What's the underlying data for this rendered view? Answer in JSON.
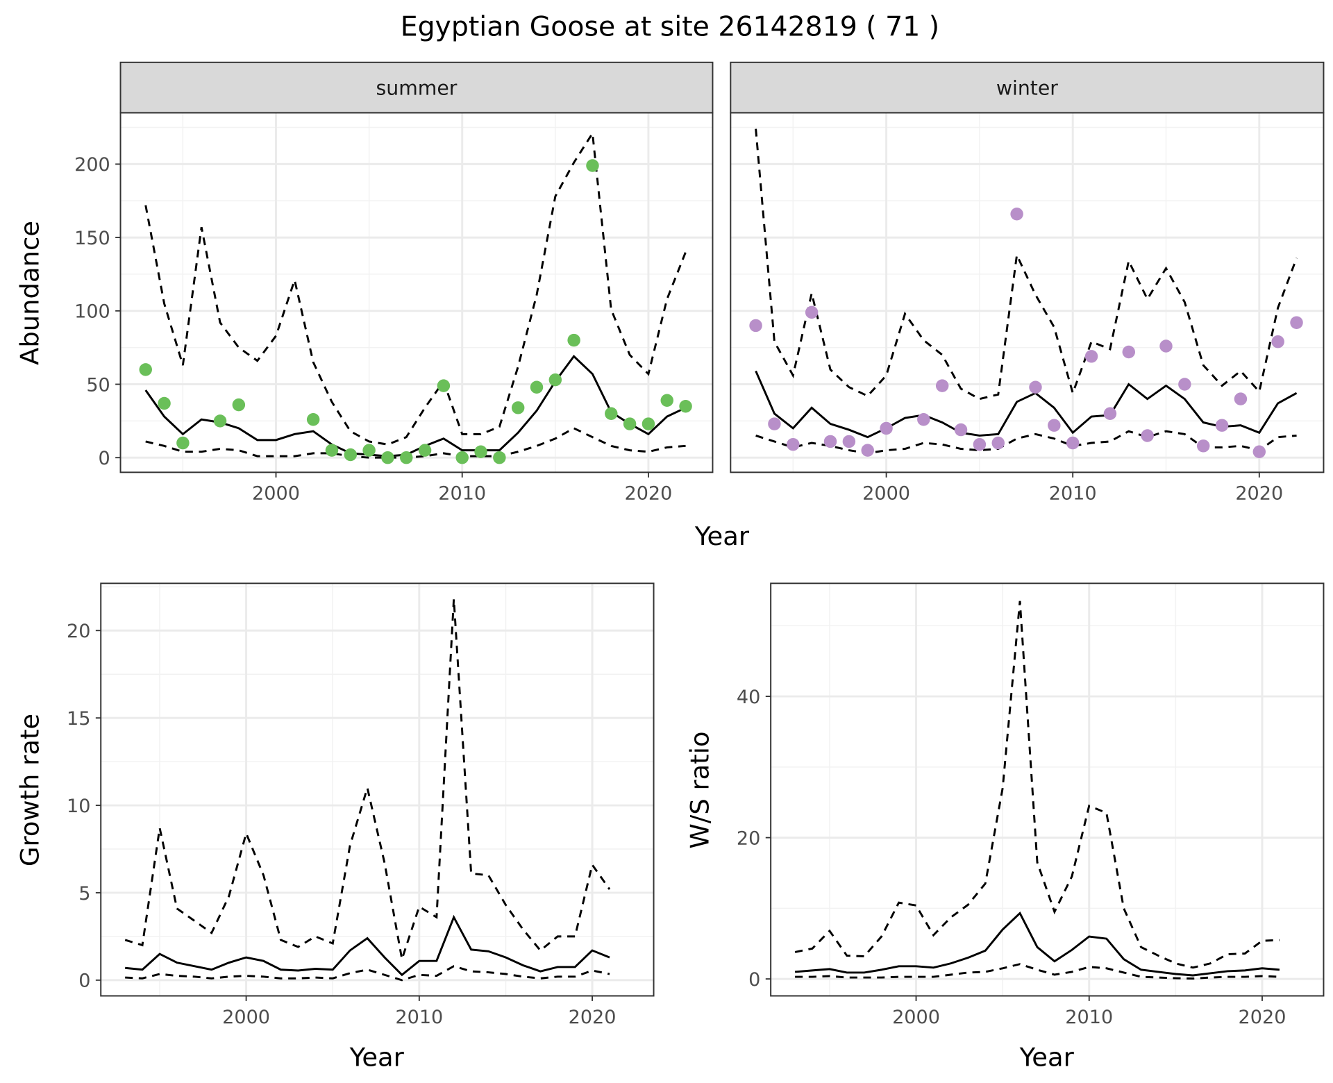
{
  "title": "Egyptian Goose at site 26142819 ( 71 )",
  "chart_data": [
    {
      "type": "line+scatter",
      "xlabel": "Year",
      "ylabel": "Abundance",
      "xlim": [
        1991.65,
        2023.45
      ],
      "ylim": [
        -10,
        235
      ],
      "xticks": [
        2000,
        2010,
        2020
      ],
      "xtick_labels": [
        "2000",
        "2010",
        "2020"
      ],
      "yticks": [
        0,
        50,
        100,
        150,
        200
      ],
      "ytick_labels": [
        "0",
        "50",
        "100",
        "150",
        "200"
      ],
      "grid": true,
      "x": [
        1993,
        1994,
        1995,
        1996,
        1997,
        1998,
        1999,
        2000,
        2001,
        2002,
        2003,
        2004,
        2005,
        2006,
        2007,
        2008,
        2009,
        2010,
        2011,
        2012,
        2013,
        2014,
        2015,
        2016,
        2017,
        2018,
        2019,
        2020,
        2021,
        2022
      ],
      "facets": [
        {
          "label": "summer",
          "point_color": "#6abf59",
          "observed": [
            60,
            37,
            10,
            null,
            25,
            36,
            null,
            null,
            null,
            26,
            5,
            2,
            5,
            0,
            0,
            5,
            49,
            0,
            4,
            0,
            34,
            48,
            53,
            80,
            199,
            30,
            23,
            23,
            39,
            35
          ],
          "mean": [
            46,
            28,
            16,
            26,
            24,
            20,
            12,
            12,
            16,
            18,
            9,
            3,
            2,
            1,
            2,
            8,
            13,
            5,
            5,
            5,
            17,
            32,
            52,
            69,
            57,
            31,
            23,
            16,
            28,
            34
          ],
          "upper": [
            172,
            105,
            63,
            157,
            92,
            75,
            66,
            83,
            121,
            65,
            38,
            18,
            11,
            9,
            14,
            34,
            52,
            16,
            16,
            21,
            62,
            111,
            178,
            201,
            221,
            101,
            70,
            57,
            108,
            140
          ],
          "lower": [
            11,
            8,
            4,
            4,
            6,
            5,
            1,
            1,
            1,
            3,
            3,
            1,
            0,
            0,
            0,
            1,
            3,
            1,
            1,
            1,
            4,
            8,
            13,
            20,
            14,
            8,
            5,
            4,
            7,
            8
          ]
        },
        {
          "label": "winter",
          "point_color": "#b88fc9",
          "observed": [
            90,
            23,
            9,
            99,
            11,
            11,
            5,
            20,
            null,
            26,
            49,
            19,
            9,
            10,
            166,
            48,
            22,
            10,
            69,
            30,
            72,
            15,
            76,
            50,
            8,
            22,
            40,
            4,
            79,
            92
          ],
          "mean": [
            59,
            30,
            20,
            34,
            23,
            19,
            14,
            20,
            27,
            29,
            24,
            17,
            15,
            16,
            38,
            44,
            34,
            17,
            28,
            29,
            50,
            40,
            49,
            40,
            24,
            21,
            22,
            17,
            37,
            44
          ],
          "upper": [
            224,
            79,
            56,
            112,
            60,
            48,
            42,
            56,
            98,
            80,
            70,
            47,
            40,
            43,
            138,
            111,
            89,
            44,
            79,
            74,
            134,
            108,
            129,
            106,
            63,
            49,
            59,
            45,
            102,
            136
          ],
          "lower": [
            15,
            11,
            7,
            10,
            8,
            5,
            3,
            5,
            6,
            10,
            9,
            6,
            5,
            6,
            13,
            16,
            13,
            8,
            10,
            11,
            18,
            14,
            18,
            16,
            7,
            7,
            8,
            5,
            14,
            15
          ]
        }
      ]
    },
    {
      "type": "line",
      "xlabel": "Year",
      "ylabel": "Growth rate",
      "xlim": [
        1991.6,
        2023.55
      ],
      "ylim": [
        -0.9,
        22.7
      ],
      "xticks": [
        2000,
        2010,
        2020
      ],
      "xtick_labels": [
        "2000",
        "2010",
        "2020"
      ],
      "yticks": [
        0,
        5,
        10,
        15,
        20
      ],
      "ytick_labels": [
        "0",
        "5",
        "10",
        "15",
        "20"
      ],
      "grid": true,
      "x": [
        1993,
        1994,
        1995,
        1996,
        1997,
        1998,
        1999,
        2000,
        2001,
        2002,
        2003,
        2004,
        2005,
        2006,
        2007,
        2008,
        2009,
        2010,
        2011,
        2012,
        2013,
        2014,
        2015,
        2016,
        2017,
        2018,
        2019,
        2020,
        2021
      ],
      "mean": [
        0.7,
        0.6,
        1.5,
        1.0,
        0.8,
        0.6,
        1.0,
        1.3,
        1.1,
        0.6,
        0.55,
        0.65,
        0.6,
        1.7,
        2.4,
        1.3,
        0.3,
        1.1,
        1.1,
        3.6,
        1.75,
        1.65,
        1.3,
        0.85,
        0.5,
        0.75,
        0.75,
        1.7,
        1.3
      ],
      "upper": [
        2.3,
        2.0,
        8.7,
        4.1,
        3.4,
        2.7,
        4.8,
        8.4,
        6.0,
        2.3,
        1.9,
        2.5,
        2.1,
        7.7,
        11.0,
        6.7,
        1.2,
        4.2,
        3.6,
        21.8,
        6.1,
        6.0,
        4.3,
        2.9,
        1.7,
        2.5,
        2.5,
        6.6,
        5.2
      ],
      "lower": [
        0.15,
        0.1,
        0.35,
        0.25,
        0.2,
        0.1,
        0.2,
        0.25,
        0.2,
        0.1,
        0.1,
        0.15,
        0.1,
        0.4,
        0.6,
        0.3,
        0.0,
        0.3,
        0.25,
        0.8,
        0.5,
        0.45,
        0.35,
        0.2,
        0.1,
        0.2,
        0.2,
        0.55,
        0.35
      ]
    },
    {
      "type": "line",
      "xlabel": "Year",
      "ylabel": "W/S ratio",
      "xlim": [
        1991.6,
        2023.55
      ],
      "ylim": [
        -2.4,
        56
      ],
      "xticks": [
        2000,
        2010,
        2020
      ],
      "xtick_labels": [
        "2000",
        "2010",
        "2020"
      ],
      "yticks": [
        0,
        20,
        40
      ],
      "ytick_labels": [
        "0",
        "20",
        "40"
      ],
      "grid": true,
      "x": [
        1993,
        1994,
        1995,
        1996,
        1997,
        1998,
        1999,
        2000,
        2001,
        2002,
        2003,
        2004,
        2005,
        2006,
        2007,
        2008,
        2009,
        2010,
        2011,
        2012,
        2013,
        2014,
        2015,
        2016,
        2017,
        2018,
        2019,
        2020,
        2021
      ],
      "mean": [
        1.0,
        1.2,
        1.4,
        0.9,
        0.9,
        1.3,
        1.8,
        1.8,
        1.6,
        2.2,
        3.0,
        4.0,
        7.0,
        9.3,
        4.5,
        2.5,
        4.1,
        6.0,
        5.7,
        2.8,
        1.3,
        1.0,
        0.7,
        0.5,
        0.8,
        1.1,
        1.2,
        1.5,
        1.3
      ],
      "upper": [
        3.8,
        4.3,
        6.8,
        3.3,
        3.2,
        6.0,
        10.8,
        10.4,
        6.2,
        8.7,
        10.5,
        13.5,
        27,
        53.5,
        16.5,
        9.5,
        14.5,
        24.5,
        23.5,
        10,
        4.5,
        3.3,
        2.2,
        1.6,
        2.2,
        3.5,
        3.6,
        5.4,
        5.5
      ],
      "lower": [
        0.3,
        0.3,
        0.4,
        0.2,
        0.2,
        0.2,
        0.3,
        0.3,
        0.3,
        0.6,
        0.9,
        1.0,
        1.5,
        2.1,
        1.3,
        0.6,
        1.0,
        1.7,
        1.5,
        0.9,
        0.3,
        0.2,
        0.1,
        0.05,
        0.2,
        0.3,
        0.3,
        0.4,
        0.3
      ]
    }
  ]
}
